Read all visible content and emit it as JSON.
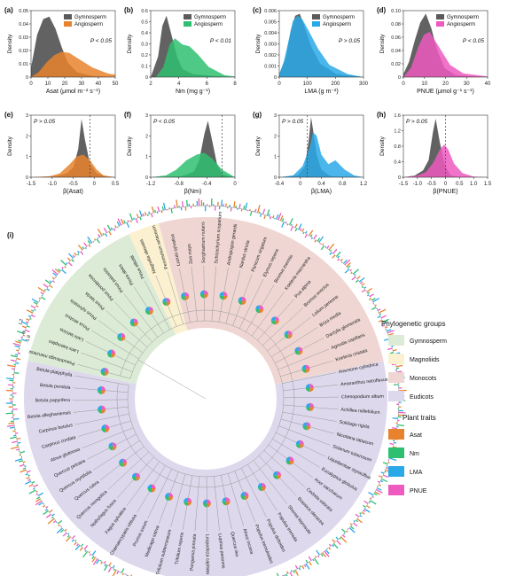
{
  "colors": {
    "gymno": "#5a5a5a",
    "asat": "#e8822e",
    "nm": "#2fbf71",
    "lma": "#2aa9e8",
    "pnue": "#ee5bc0",
    "bg_gymno": "#dcebd6",
    "bg_magno": "#fbf1d0",
    "bg_mono": "#efd6d3",
    "bg_eudi": "#ddd8ec"
  },
  "panels": [
    {
      "tag": "(a)",
      "pval": "P < 0.05",
      "legend": [
        "Gymnosperm",
        "Angiosperm"
      ],
      "xlabel": "Asat (μmol m⁻² s⁻¹)",
      "ylabel": "Density",
      "xticks": [
        "0",
        "10",
        "20",
        "30",
        "40",
        "50"
      ],
      "yticks": [
        "0",
        "0.01",
        "0.02",
        "0.03",
        "0.04",
        "0.05"
      ]
    },
    {
      "tag": "(b)",
      "pval": "P < 0.01",
      "legend": [
        "Gymnosperm",
        "Angiosperm"
      ],
      "xlabel": "Nm (mg g⁻¹)",
      "ylabel": "Density",
      "xticks": [
        "2",
        "4",
        "6",
        "8"
      ],
      "yticks": [
        "0",
        "0.1",
        "0.2",
        "0.3",
        "0.4",
        "0.5",
        "0.6"
      ]
    },
    {
      "tag": "(c)",
      "pval": "P > 0.05",
      "legend": [
        "Gymnosperm",
        "Angiosperm"
      ],
      "xlabel": "LMA (g m⁻²)",
      "ylabel": "Density",
      "xticks": [
        "0",
        "100",
        "200",
        "300"
      ],
      "yticks": [
        "0",
        "0.001",
        "0.002",
        "0.003",
        "0.004",
        "0.005",
        "0.006"
      ]
    },
    {
      "tag": "(d)",
      "pval": "P < 0.05",
      "legend": [
        "Gymnosperm",
        "Angiosperm"
      ],
      "xlabel": "PNUE (μmol g⁻¹ s⁻¹)",
      "ylabel": "Density",
      "xticks": [
        "0",
        "10",
        "20",
        "30",
        "40"
      ],
      "yticks": [
        "0",
        "0.02",
        "0.04",
        "0.06",
        "0.08",
        "0.10"
      ]
    },
    {
      "tag": "(e)",
      "pval": "P > 0.05",
      "xlabel": "β(Asat)",
      "ylabel": "Density",
      "xticks": [
        "-1.5",
        "-1.0",
        "-0.5",
        "0",
        "0.5"
      ],
      "yticks": [
        "0",
        "1",
        "2",
        "3"
      ]
    },
    {
      "tag": "(f)",
      "pval": "P < 0.05",
      "xlabel": "β(Nm)",
      "ylabel": "Density",
      "xticks": [
        "-1.2",
        "-0.8",
        "-0.4",
        "0"
      ],
      "yticks": [
        "0",
        "1",
        "2",
        "3"
      ]
    },
    {
      "tag": "(g)",
      "pval": "P > 0.05",
      "xlabel": "β(LMA)",
      "ylabel": "Density",
      "xticks": [
        "-0.4",
        "0",
        "0.4",
        "0.8",
        "1.2"
      ],
      "yticks": [
        "0",
        "1",
        "2",
        "3"
      ]
    },
    {
      "tag": "(h)",
      "pval": "P > 0.05",
      "xlabel": "β(PNUE)",
      "ylabel": "Density",
      "xticks": [
        "-1.5",
        "-1.0",
        "-0.5",
        "0",
        "0.5",
        "1.0",
        "1.5"
      ],
      "yticks": [
        "0",
        "0.4",
        "0.8",
        "1.2",
        "1.6"
      ]
    }
  ],
  "chart_data": [
    {
      "type": "area",
      "title": "(a)",
      "xlabel": "Asat (μmol m⁻² s⁻¹)",
      "ylabel": "Density",
      "xlim": [
        0,
        55
      ],
      "ylim": [
        0,
        0.055
      ],
      "series": [
        {
          "name": "Gymnosperm",
          "x": [
            0,
            4,
            8,
            12,
            16,
            20,
            24,
            30,
            40,
            55
          ],
          "values": [
            0.008,
            0.035,
            0.048,
            0.05,
            0.04,
            0.025,
            0.012,
            0.004,
            0.001,
            0
          ]
        },
        {
          "name": "Angiosperm",
          "x": [
            0,
            5,
            10,
            15,
            20,
            25,
            30,
            40,
            50,
            55
          ],
          "values": [
            0.0,
            0.004,
            0.012,
            0.018,
            0.021,
            0.02,
            0.016,
            0.008,
            0.003,
            0.002
          ]
        }
      ]
    },
    {
      "type": "area",
      "title": "(b)",
      "xlabel": "Nm (mg g⁻¹)",
      "ylabel": "Density",
      "xlim": [
        0,
        8
      ],
      "ylim": [
        0,
        0.65
      ],
      "series": [
        {
          "name": "Gymnosperm",
          "x": [
            0,
            0.7,
            1.1,
            1.5,
            2.0,
            2.5,
            3.0,
            4.0,
            6.0,
            8.0
          ],
          "values": [
            0.0,
            0.2,
            0.5,
            0.6,
            0.4,
            0.2,
            0.08,
            0.03,
            0.01,
            0
          ]
        },
        {
          "name": "Angiosperm",
          "x": [
            0.5,
            1.2,
            1.8,
            2.3,
            3.0,
            3.7,
            4.5,
            5.5,
            7.0,
            8.0
          ],
          "values": [
            0.0,
            0.1,
            0.32,
            0.38,
            0.32,
            0.3,
            0.22,
            0.1,
            0.02,
            0.005
          ]
        }
      ]
    },
    {
      "type": "area",
      "title": "(c)",
      "xlabel": "LMA (g m⁻²)",
      "ylabel": "Density",
      "xlim": [
        0,
        370
      ],
      "ylim": [
        0,
        0.0065
      ],
      "series": [
        {
          "name": "Gymnosperm",
          "x": [
            0,
            30,
            50,
            70,
            90,
            110,
            140,
            180,
            250,
            370
          ],
          "values": [
            0.0003,
            0.002,
            0.0045,
            0.006,
            0.0062,
            0.005,
            0.003,
            0.0013,
            0.0003,
            0
          ]
        },
        {
          "name": "Angiosperm",
          "x": [
            0,
            20,
            40,
            60,
            80,
            100,
            130,
            170,
            220,
            300,
            370
          ],
          "values": [
            0.0003,
            0.0015,
            0.0035,
            0.0055,
            0.006,
            0.0057,
            0.0045,
            0.0028,
            0.0012,
            0.0003,
            0
          ]
        }
      ]
    },
    {
      "type": "area",
      "title": "(d)",
      "xlabel": "PNUE (μmol g⁻¹ s⁻¹)",
      "ylabel": "Density",
      "xlim": [
        0,
        45
      ],
      "ylim": [
        0,
        0.11
      ],
      "series": [
        {
          "name": "Gymnosperm",
          "x": [
            0,
            3,
            6,
            9,
            12,
            15,
            18,
            22,
            28,
            45
          ],
          "values": [
            0.005,
            0.025,
            0.06,
            0.09,
            0.105,
            0.08,
            0.045,
            0.015,
            0.003,
            0
          ]
        },
        {
          "name": "Angiosperm",
          "x": [
            0,
            4,
            8,
            11,
            14,
            17,
            20,
            25,
            32,
            45
          ],
          "values": [
            0.0,
            0.015,
            0.05,
            0.07,
            0.075,
            0.06,
            0.045,
            0.02,
            0.006,
            0.001
          ]
        }
      ]
    },
    {
      "type": "area",
      "title": "(e)",
      "xlabel": "β(Asat)",
      "ylabel": "Density",
      "xlim": [
        -1.75,
        0.75
      ],
      "ylim": [
        0,
        3.3
      ],
      "series": [
        {
          "x": [
            -1.75,
            -1.0,
            -0.7,
            -0.5,
            -0.35,
            -0.25,
            -0.15,
            0.0,
            0.2,
            0.5,
            0.75
          ],
          "values": [
            0,
            0.05,
            0.2,
            0.5,
            1.5,
            3.1,
            2.0,
            0.7,
            0.2,
            0.03,
            0
          ]
        },
        {
          "x": [
            -1.75,
            -1.2,
            -0.9,
            -0.6,
            -0.4,
            -0.2,
            0.0,
            0.2,
            0.4,
            0.75
          ],
          "values": [
            0,
            0.05,
            0.2,
            0.7,
            1.1,
            1.2,
            0.9,
            0.4,
            0.1,
            0
          ]
        }
      ]
    },
    {
      "type": "area",
      "title": "(f)",
      "xlabel": "β(Nm)",
      "ylabel": "Density",
      "xlim": [
        -1.4,
        0.25
      ],
      "ylim": [
        0,
        3.3
      ],
      "series": [
        {
          "x": [
            -1.4,
            -0.8,
            -0.55,
            -0.45,
            -0.35,
            -0.28,
            -0.2,
            -0.1,
            0.0,
            0.25
          ],
          "values": [
            0,
            0.05,
            0.3,
            0.9,
            2.3,
            3.0,
            2.0,
            0.7,
            0.15,
            0
          ]
        },
        {
          "x": [
            -1.4,
            -1.1,
            -0.9,
            -0.7,
            -0.5,
            -0.35,
            -0.2,
            0.0,
            0.25
          ],
          "values": [
            0,
            0.1,
            0.4,
            0.9,
            1.2,
            1.3,
            1.0,
            0.4,
            0
          ]
        }
      ]
    },
    {
      "type": "area",
      "title": "(g)",
      "xlabel": "β(LMA)",
      "ylabel": "Density",
      "xlim": [
        -0.6,
        1.2
      ],
      "ylim": [
        0,
        3.3
      ],
      "series": [
        {
          "x": [
            -0.6,
            -0.2,
            -0.05,
            0.03,
            0.08,
            0.13,
            0.2,
            0.3,
            0.5,
            1.2
          ],
          "values": [
            0,
            0.1,
            0.6,
            2.0,
            3.2,
            2.4,
            1.2,
            0.4,
            0.05,
            0
          ]
        },
        {
          "x": [
            -0.6,
            -0.3,
            -0.1,
            0.05,
            0.12,
            0.2,
            0.3,
            0.45,
            0.6,
            0.8,
            1.0,
            1.2
          ],
          "values": [
            0,
            0.1,
            0.6,
            1.6,
            2.4,
            2.2,
            1.2,
            0.7,
            0.9,
            0.4,
            0.1,
            0
          ]
        }
      ]
    },
    {
      "type": "area",
      "title": "(h)",
      "xlabel": "β(PNUE)",
      "ylabel": "Density",
      "xlim": [
        -1.5,
        1.5
      ],
      "ylim": [
        0,
        1.8
      ],
      "series": [
        {
          "x": [
            -1.5,
            -1.1,
            -0.8,
            -0.6,
            -0.45,
            -0.35,
            -0.2,
            0.0,
            0.2,
            0.5,
            1.5
          ],
          "values": [
            0,
            0.05,
            0.2,
            0.5,
            1.3,
            1.7,
            1.0,
            0.3,
            0.05,
            0.01,
            0
          ]
        },
        {
          "x": [
            -1.5,
            -1.0,
            -0.7,
            -0.45,
            -0.2,
            -0.05,
            0.1,
            0.3,
            0.6,
            1.0,
            1.5
          ],
          "values": [
            0,
            0.05,
            0.15,
            0.4,
            0.8,
            0.95,
            0.8,
            0.4,
            0.12,
            0.02,
            0
          ]
        }
      ]
    }
  ],
  "circle": {
    "tag": "(i)",
    "axis_ticks": [
      "1.2",
      "0",
      "-1.8"
    ],
    "species": [
      "Pseudotsuga menziesii",
      "Larix kaempferi",
      "Larix laricina",
      "Pinus strobus",
      "Pinus sylvestris",
      "Pinus taeda",
      "Pinus ponderosa",
      "Pinus palustris",
      "Picea abies",
      "Pinus elliottii",
      "Magnolia obovata",
      "Pennisetum setaceum",
      "Luzula sylvatica",
      "Zea mays",
      "Sorghastrum nutans",
      "Schizachyrium scoparium",
      "Andropogon gerardii",
      "Nardus stricta",
      "Panicum virgatum",
      "Elymus repens",
      "Bromus inermis",
      "Koeleria macrantha",
      "Poa alpina",
      "Bromus erectus",
      "Lolium perenne",
      "Briza media",
      "Dactylis glomerata",
      "Agrostis capillaris",
      "Koeleria cristata",
      "Anemone cylindrica",
      "Amaranthus retroflexus",
      "Chenopodium album",
      "Achillea millefolium",
      "Solidago rigida",
      "Nicotiana tabacum",
      "Solanum tuberosum",
      "Liquidambar styraciflua",
      "Eucalyptus globulus",
      "Acer saccharum",
      "Cedrela odorata",
      "Brassica oleracea",
      "Shorea leprosula",
      "Populus tremula",
      "Populus deltoides",
      "Populus tremuloides",
      "Alnus incana",
      "Quercus ilex",
      "Lupinus perennis",
      "Lespedeza capitata",
      "Pongamia pinnata",
      "Trifolium repens",
      "Trifolium subterraneum",
      "Medicago sativa",
      "Prunus avium",
      "Chamaecyparis obtusa",
      "Fagus sylvatica",
      "Nothofagus fusca",
      "Quercus mongolica",
      "Quercus rubra",
      "Quercus myrtifolia",
      "Quercus petraea",
      "Alnus glutinosa",
      "Carpinus cordata",
      "Carpinus betulus",
      "Betula alleghaniensis",
      "Betula papyrifera",
      "Betula pendula",
      "Betula platyphylla"
    ],
    "groups": [
      {
        "label": "Gymnosperm",
        "color": "#dcebd6"
      },
      {
        "label": "Magnoliids",
        "color": "#fbf1d0"
      },
      {
        "label": "Monocots",
        "color": "#efd6d3"
      },
      {
        "label": "Eudicots",
        "color": "#ddd8ec"
      }
    ],
    "bars": [
      [
        0.4,
        -0.2,
        0.3,
        -0.5
      ],
      [
        0.8,
        0.3,
        -0.2,
        0.6
      ],
      [
        -0.3,
        0.5,
        0.9,
        -0.1
      ],
      [
        0.2,
        -0.6,
        0.1,
        0.4
      ],
      [
        1.0,
        0.2,
        -0.4,
        0.7
      ],
      [
        -0.5,
        0.8,
        0.3,
        -0.3
      ],
      [
        0.3,
        -0.1,
        0.6,
        0.9
      ],
      [
        0.7,
        0.4,
        -0.7,
        0.2
      ],
      [
        -0.2,
        0.9,
        0.2,
        -0.6
      ],
      [
        0.5,
        -0.4,
        0.8,
        0.3
      ]
    ]
  },
  "legend": {
    "groups_title": "Phylogenetic groups",
    "groups": [
      "Gymnosperm",
      "Magnoliids",
      "Monocots",
      "Eudicots"
    ],
    "traits_title": "Plant traits",
    "traits": [
      "Asat",
      "Nm",
      "LMA",
      "PNUE"
    ]
  }
}
